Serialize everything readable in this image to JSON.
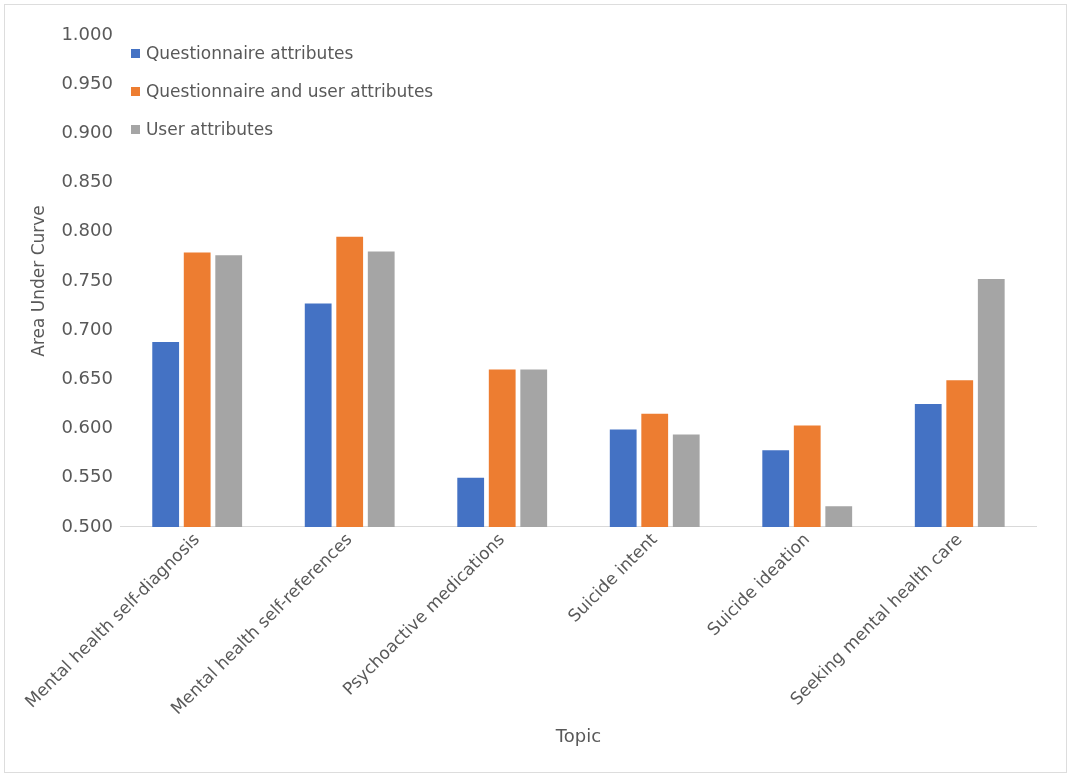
{
  "chart_data": {
    "type": "bar",
    "xlabel": "Topic",
    "ylabel": "Area Under Curve",
    "categories": [
      "Mental health self-diagnosis",
      "Mental health self-references",
      "Psychoactive medications",
      "Suicide intent",
      "Suicide ideation",
      "Seeking mental health care"
    ],
    "series": [
      {
        "name": "Questionnaire attributes",
        "color": "#4472c4",
        "values": [
          0.688,
          0.727,
          0.55,
          0.599,
          0.578,
          0.625
        ]
      },
      {
        "name": "Questionnaire and user attributes",
        "color": "#ed7d31",
        "values": [
          0.779,
          0.795,
          0.66,
          0.615,
          0.603,
          0.649
        ]
      },
      {
        "name": "User attributes",
        "color": "#a5a5a5",
        "values": [
          0.776,
          0.78,
          0.66,
          0.594,
          0.521,
          0.752
        ]
      }
    ],
    "ylim": [
      0.5,
      1.0
    ],
    "yticks": [
      {
        "value": 0.5,
        "label": "0.500"
      },
      {
        "value": 0.55,
        "label": "0.550"
      },
      {
        "value": 0.6,
        "label": "0.600"
      },
      {
        "value": 0.65,
        "label": "0.650"
      },
      {
        "value": 0.7,
        "label": "0.700"
      },
      {
        "value": 0.75,
        "label": "0.750"
      },
      {
        "value": 0.8,
        "label": "0.800"
      },
      {
        "value": 0.85,
        "label": "0.850"
      },
      {
        "value": 0.9,
        "label": "0.900"
      },
      {
        "value": 0.95,
        "label": "0.950"
      },
      {
        "value": 1.0,
        "label": "1.000"
      }
    ],
    "grid": false,
    "legend": "top left"
  }
}
